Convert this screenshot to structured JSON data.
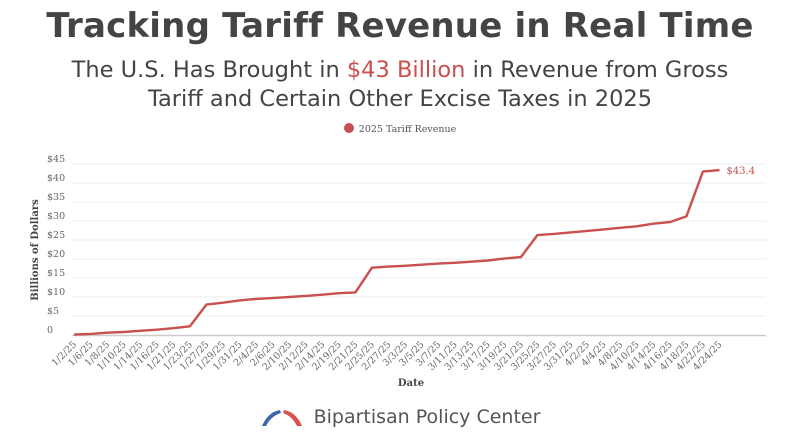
{
  "header": {
    "title": "Tracking Tariff Revenue in Real Time",
    "subtitle_pre": "The U.S. Has Brought in ",
    "subtitle_highlight": "$43 Billion",
    "subtitle_post": " in Revenue from Gross",
    "subtitle_line2": "Tariff and Certain Other Excise Taxes in 2025"
  },
  "colors": {
    "accent": "#c9504f",
    "text": "#444444",
    "grid": "#eeeeee",
    "logo_blue": "#3d66a8",
    "logo_red": "#d9504c"
  },
  "footer": {
    "brand": "Bipartisan Policy Center",
    "logo_icon": "arch-icon"
  },
  "chart_data": {
    "type": "line",
    "title": "Tracking Tariff Revenue in Real Time",
    "xlabel": "Date",
    "ylabel": "Billions of Dollars",
    "ylim": [
      0,
      45
    ],
    "yticks": [
      0,
      5,
      10,
      15,
      20,
      25,
      30,
      35,
      40,
      45
    ],
    "ytick_labels": [
      "0",
      "$5",
      "$10",
      "$15",
      "$20",
      "$25",
      "$30",
      "$35",
      "$40",
      "$45"
    ],
    "grid": true,
    "legend": "top-center",
    "end_label": "$43.4",
    "categories": [
      "1/2/25",
      "1/6/25",
      "1/8/25",
      "1/10/25",
      "1/14/25",
      "1/16/25",
      "1/21/25",
      "1/23/25",
      "1/27/25",
      "1/29/25",
      "1/31/25",
      "2/4/25",
      "2/6/25",
      "2/10/25",
      "2/12/25",
      "2/14/25",
      "2/19/25",
      "2/21/25",
      "2/25/25",
      "2/27/25",
      "3/3/25",
      "3/5/25",
      "3/7/25",
      "3/11/25",
      "3/13/25",
      "3/17/25",
      "3/19/25",
      "3/21/25",
      "3/25/25",
      "3/27/25",
      "3/31/25",
      "4/2/25",
      "4/4/25",
      "4/8/25",
      "4/10/25",
      "4/14/25",
      "4/16/25",
      "4/18/25",
      "4/22/25",
      "4/24/25"
    ],
    "series": [
      {
        "name": "2025 Tariff Revenue",
        "values": [
          0.1,
          0.3,
          0.6,
          0.8,
          1.1,
          1.4,
          1.8,
          2.3,
          8.0,
          8.5,
          9.1,
          9.5,
          9.7,
          10.0,
          10.3,
          10.6,
          11.0,
          11.2,
          17.7,
          18.0,
          18.2,
          18.5,
          18.8,
          19.0,
          19.3,
          19.6,
          20.1,
          20.5,
          26.3,
          26.6,
          27.0,
          27.4,
          27.8,
          28.2,
          28.6,
          29.3,
          29.7,
          31.2,
          43.0,
          43.4
        ]
      }
    ]
  }
}
